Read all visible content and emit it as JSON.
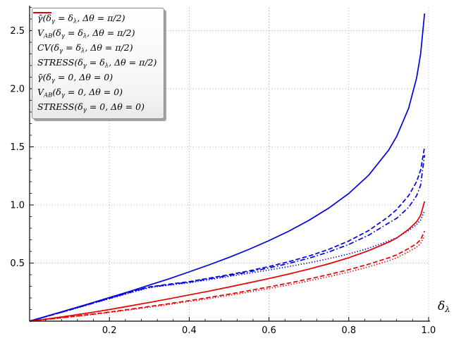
{
  "figure": {
    "background": "#ffffff"
  },
  "chart_data": {
    "type": "line",
    "title": "",
    "xlabel": "δ_λ",
    "ylabel": "",
    "xlim": [
      0,
      1.0
    ],
    "ylim": [
      0,
      2.715
    ],
    "xticks": [
      0.2,
      0.4,
      0.6,
      0.8,
      1.0
    ],
    "yticks": [
      0.5,
      1.0,
      1.5,
      2.0,
      2.5
    ],
    "xtick_labels": [
      "0.2",
      "0.4",
      "0.6",
      "0.8",
      "1.0"
    ],
    "ytick_labels": [
      "0.5",
      "1.0",
      "1.5",
      "2.0",
      "2.5"
    ],
    "grid": true,
    "grid_color": "#9a9a9a",
    "legend_position": "upper left",
    "x": [
      0,
      0.05,
      0.1,
      0.15,
      0.2,
      0.25,
      0.3,
      0.35,
      0.4,
      0.45,
      0.5,
      0.55,
      0.6,
      0.65,
      0.7,
      0.75,
      0.8,
      0.85,
      0.9,
      0.92,
      0.95,
      0.97,
      0.98,
      0.99
    ],
    "series": [
      {
        "key": "gamma-bar-pi2",
        "name": "γ̄(δ_γ = δ_λ, Δθ = π/2)",
        "color": "#0000e0",
        "style": "solid",
        "values": [
          0,
          0.05,
          0.1,
          0.151,
          0.203,
          0.255,
          0.31,
          0.365,
          0.424,
          0.485,
          0.549,
          0.618,
          0.693,
          0.775,
          0.867,
          0.973,
          1.099,
          1.256,
          1.472,
          1.589,
          1.832,
          2.092,
          2.298,
          2.647
        ]
      },
      {
        "key": "vab-pi2",
        "name": "V_{AB}(δ_γ = δ_λ, Δθ = π/2)",
        "color": "#0000e0",
        "style": "dashed",
        "values": [
          0,
          0.048,
          0.097,
          0.147,
          0.198,
          0.249,
          0.295,
          0.318,
          0.34,
          0.37,
          0.4,
          0.433,
          0.47,
          0.512,
          0.56,
          0.618,
          0.69,
          0.78,
          0.9,
          0.96,
          1.08,
          1.2,
          1.3,
          1.5
        ]
      },
      {
        "key": "cv-pi2",
        "name": "CV(δ_γ = δ_λ, Δθ = π/2)",
        "color": "#0000e0",
        "style": "dashdot",
        "values": [
          0,
          0.048,
          0.096,
          0.146,
          0.196,
          0.246,
          0.292,
          0.314,
          0.335,
          0.364,
          0.393,
          0.424,
          0.458,
          0.497,
          0.542,
          0.596,
          0.66,
          0.74,
          0.845,
          0.885,
          0.98,
          1.08,
          1.17,
          1.43
        ]
      },
      {
        "key": "stress-pi2",
        "name": "STRESS(δ_γ = δ_λ, Δθ = π/2)",
        "color": "#0000e0",
        "style": "dotted",
        "values": [
          0,
          0.047,
          0.095,
          0.144,
          0.193,
          0.242,
          0.288,
          0.31,
          0.33,
          0.357,
          0.384,
          0.412,
          0.44,
          0.47,
          0.502,
          0.538,
          0.578,
          0.628,
          0.69,
          0.718,
          0.78,
          0.83,
          0.87,
          0.95
        ]
      },
      {
        "key": "gamma-bar-0",
        "name": "γ̄(δ_γ = 0, Δθ = 0)",
        "color": "#e60000",
        "style": "solid",
        "values": [
          0,
          0.022,
          0.046,
          0.072,
          0.1,
          0.13,
          0.161,
          0.193,
          0.226,
          0.259,
          0.294,
          0.33,
          0.367,
          0.406,
          0.448,
          0.494,
          0.546,
          0.607,
          0.68,
          0.715,
          0.79,
          0.855,
          0.91,
          1.03
        ]
      },
      {
        "key": "vab-0",
        "name": "V_{AB}(δ_γ = 0, Δθ = 0)",
        "color": "#e60000",
        "style": "dashed",
        "values": [
          0,
          0.018,
          0.037,
          0.057,
          0.079,
          0.102,
          0.126,
          0.151,
          0.177,
          0.204,
          0.233,
          0.263,
          0.295,
          0.328,
          0.363,
          0.401,
          0.443,
          0.49,
          0.545,
          0.57,
          0.625,
          0.668,
          0.7,
          0.775
        ]
      },
      {
        "key": "stress-0",
        "name": "STRESS(δ_γ = 0, Δθ = 0)",
        "color": "#e60000",
        "style": "dotted",
        "values": [
          0,
          0.017,
          0.035,
          0.054,
          0.075,
          0.097,
          0.12,
          0.144,
          0.169,
          0.195,
          0.222,
          0.251,
          0.281,
          0.313,
          0.347,
          0.383,
          0.423,
          0.468,
          0.52,
          0.545,
          0.598,
          0.637,
          0.668,
          0.735
        ]
      }
    ]
  }
}
